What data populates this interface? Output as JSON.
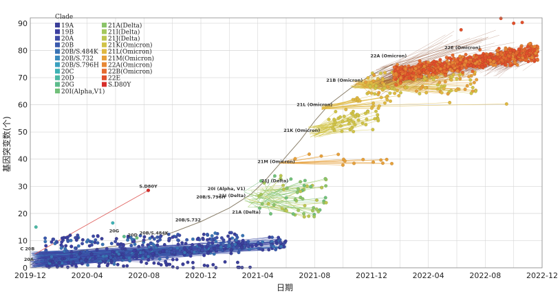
{
  "chart_data": {
    "type": "scatter",
    "title": "",
    "xlabel": "日期",
    "ylabel": "基因突变数(个)",
    "xlim": [
      0,
      36
    ],
    "ylim": [
      0,
      92
    ],
    "x_tick_labels": [
      "2019-12",
      "2020-04",
      "2020-08",
      "2020-12",
      "2021-04",
      "2021-08",
      "2021-12",
      "2022-04",
      "2022-08",
      "2022-12"
    ],
    "x_tick_positions": [
      0,
      4,
      8,
      12,
      16,
      20,
      24,
      28,
      32,
      36
    ],
    "y_ticks": [
      0,
      10,
      20,
      30,
      40,
      50,
      60,
      70,
      80,
      90
    ],
    "legend_title": "Clade",
    "legend": [
      {
        "name": "19A",
        "color": "#3b3f99"
      },
      {
        "name": "19B",
        "color": "#3c3fa0"
      },
      {
        "name": "20A",
        "color": "#3f4ca6"
      },
      {
        "name": "20B",
        "color": "#3a5aad"
      },
      {
        "name": "20B/S.484K",
        "color": "#3a73b4"
      },
      {
        "name": "20B/S.732",
        "color": "#3b8bbd"
      },
      {
        "name": "20B/S.796H",
        "color": "#3aa0bf"
      },
      {
        "name": "20C",
        "color": "#3fb2b5"
      },
      {
        "name": "20D",
        "color": "#4cb8a4"
      },
      {
        "name": "20G",
        "color": "#5cbc8c"
      },
      {
        "name": "20I(Alpha,V1)",
        "color": "#72c07a"
      },
      {
        "name": "21A(Delta)",
        "color": "#8bc46a"
      },
      {
        "name": "21I(Delta)",
        "color": "#a5c85c"
      },
      {
        "name": "21J(Delta)",
        "color": "#bcc651"
      },
      {
        "name": "21K(Omicron)",
        "color": "#d0c348"
      },
      {
        "name": "21L(Omicron)",
        "color": "#dfb842"
      },
      {
        "name": "21M(Omicron)",
        "color": "#e5a03c"
      },
      {
        "name": "22A(Omicron)",
        "color": "#e78836"
      },
      {
        "name": "22B(Omicron)",
        "color": "#e56b30"
      },
      {
        "name": "22E",
        "color": "#e0502c"
      },
      {
        "name": "S.D80Y",
        "color": "#d62d2a"
      }
    ],
    "annotations": [
      {
        "label": "S.D80Y",
        "x": 8.3,
        "y": 29.5
      },
      {
        "label": "20I (Alpha, V1)",
        "x": 13.8,
        "y": 28.5
      },
      {
        "label": "21J (Delta)",
        "x": 17.2,
        "y": 31.5
      },
      {
        "label": "20B/S.796H",
        "x": 12.7,
        "y": 25.5
      },
      {
        "label": "21I (Delta)",
        "x": 14.2,
        "y": 26.0
      },
      {
        "label": "21A (Delta)",
        "x": 15.2,
        "y": 20.0
      },
      {
        "label": "20B/S.732",
        "x": 11.1,
        "y": 17.0
      },
      {
        "label": "20G",
        "x": 5.9,
        "y": 13.0
      },
      {
        "label": "20D",
        "x": 7.2,
        "y": 11.5
      },
      {
        "label": "20B/S.484K",
        "x": 8.7,
        "y": 12.2
      },
      {
        "label": "21M (Omicron)",
        "x": 17.3,
        "y": 38.5
      },
      {
        "label": "21K (Omicron)",
        "x": 19.1,
        "y": 50.0
      },
      {
        "label": "21L (Omicron)",
        "x": 20.0,
        "y": 59.5
      },
      {
        "label": "21B (Omicron)",
        "x": 22.1,
        "y": 68.5
      },
      {
        "label": "22A (Omicron)",
        "x": 25.2,
        "y": 77.5
      },
      {
        "label": "22E (Omicron)",
        "x": 30.4,
        "y": 80.5
      },
      {
        "label": "C 20B",
        "x": -0.2,
        "y": 6.5
      },
      {
        "label": "20A",
        "x": -0.1,
        "y": 2.5
      }
    ]
  }
}
